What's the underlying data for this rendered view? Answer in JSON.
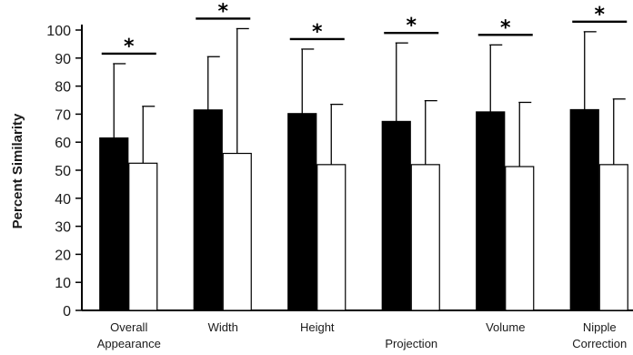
{
  "chart_data": {
    "type": "bar",
    "title": "",
    "xlabel": "",
    "ylabel": "Percent Similarity",
    "ylim": [
      0,
      100
    ],
    "yticks": [
      0,
      10,
      20,
      30,
      40,
      50,
      60,
      70,
      80,
      90,
      100
    ],
    "categories": [
      [
        "Overall",
        "Appearance"
      ],
      [
        "Width"
      ],
      [
        "Height"
      ],
      [
        "",
        "Projection"
      ],
      [
        "Volume"
      ],
      [
        "Nipple",
        "Correction"
      ]
    ],
    "series": [
      {
        "color": "#000000",
        "values": [
          61.5,
          71.5,
          70.2,
          67.4,
          70.8,
          71.6
        ],
        "error_upper": [
          88,
          90.5,
          93.2,
          95.4,
          94.7,
          99.4
        ]
      },
      {
        "color": "#ffffff",
        "values": [
          52.5,
          56,
          52,
          52,
          51.3,
          52
        ],
        "error_upper": [
          72.8,
          100.5,
          73.5,
          74.8,
          74.2,
          75.4
        ]
      }
    ],
    "significance_marker": "*",
    "significant": [
      true,
      true,
      true,
      true,
      true,
      true
    ],
    "grid": false,
    "legend": "none"
  }
}
